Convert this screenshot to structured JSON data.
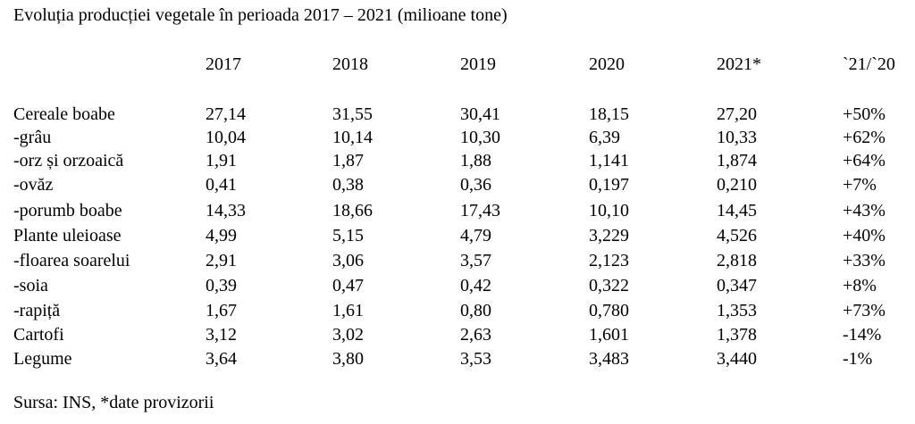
{
  "title": "Evoluția producției vegetale în perioada 2017 – 2021 (milioane tone)",
  "columns": [
    "2017",
    "2018",
    "2019",
    "2020",
    "2021*",
    "`21/`20"
  ],
  "rows": [
    {
      "label": "Cereale boabe",
      "values": [
        "27,14",
        "31,55",
        "30,41",
        "18,15",
        "27,20",
        "+50%"
      ]
    },
    {
      "label": "-grâu",
      "values": [
        "10,04",
        "10,14",
        "10,30",
        "6,39",
        "10,33",
        "+62%"
      ]
    },
    {
      "label": "-orz și orzoaică",
      "values": [
        "1,91",
        "1,87",
        "1,88",
        "1,141",
        "1,874",
        "+64%"
      ]
    },
    {
      "label": "-ovăz",
      "values": [
        "0,41",
        "0,38",
        "0,36",
        "0,197",
        "0,210",
        "+7%"
      ]
    },
    {
      "label": "-porumb boabe",
      "values": [
        "14,33",
        "18,66",
        "17,43",
        "10,10",
        "14,45",
        "+43%"
      ]
    },
    {
      "label": "Plante uleioase",
      "values": [
        "4,99",
        "5,15",
        "4,79",
        "3,229",
        "4,526",
        "+40%"
      ]
    },
    {
      "label": "-floarea soarelui",
      "values": [
        "2,91",
        "3,06",
        "3,57",
        "2,123",
        "2,818",
        "+33%"
      ]
    },
    {
      "label": "-soia",
      "values": [
        "0,39",
        "0,47",
        "0,42",
        "0,322",
        "0,347",
        "+8%"
      ]
    },
    {
      "label": "-rapiță",
      "values": [
        "1,67",
        "1,61",
        "0,80",
        "0,780",
        "1,353",
        "+73%"
      ]
    },
    {
      "label": "Cartofi",
      "values": [
        "3,12",
        "3,02",
        "2,63",
        "1,601",
        "1,378",
        "-14%"
      ]
    },
    {
      "label": "Legume",
      "values": [
        "3,64",
        "3,80",
        "3,53",
        "3,483",
        "3,440",
        "-1%"
      ]
    }
  ],
  "footer": "Sursa: INS, *date provizorii"
}
